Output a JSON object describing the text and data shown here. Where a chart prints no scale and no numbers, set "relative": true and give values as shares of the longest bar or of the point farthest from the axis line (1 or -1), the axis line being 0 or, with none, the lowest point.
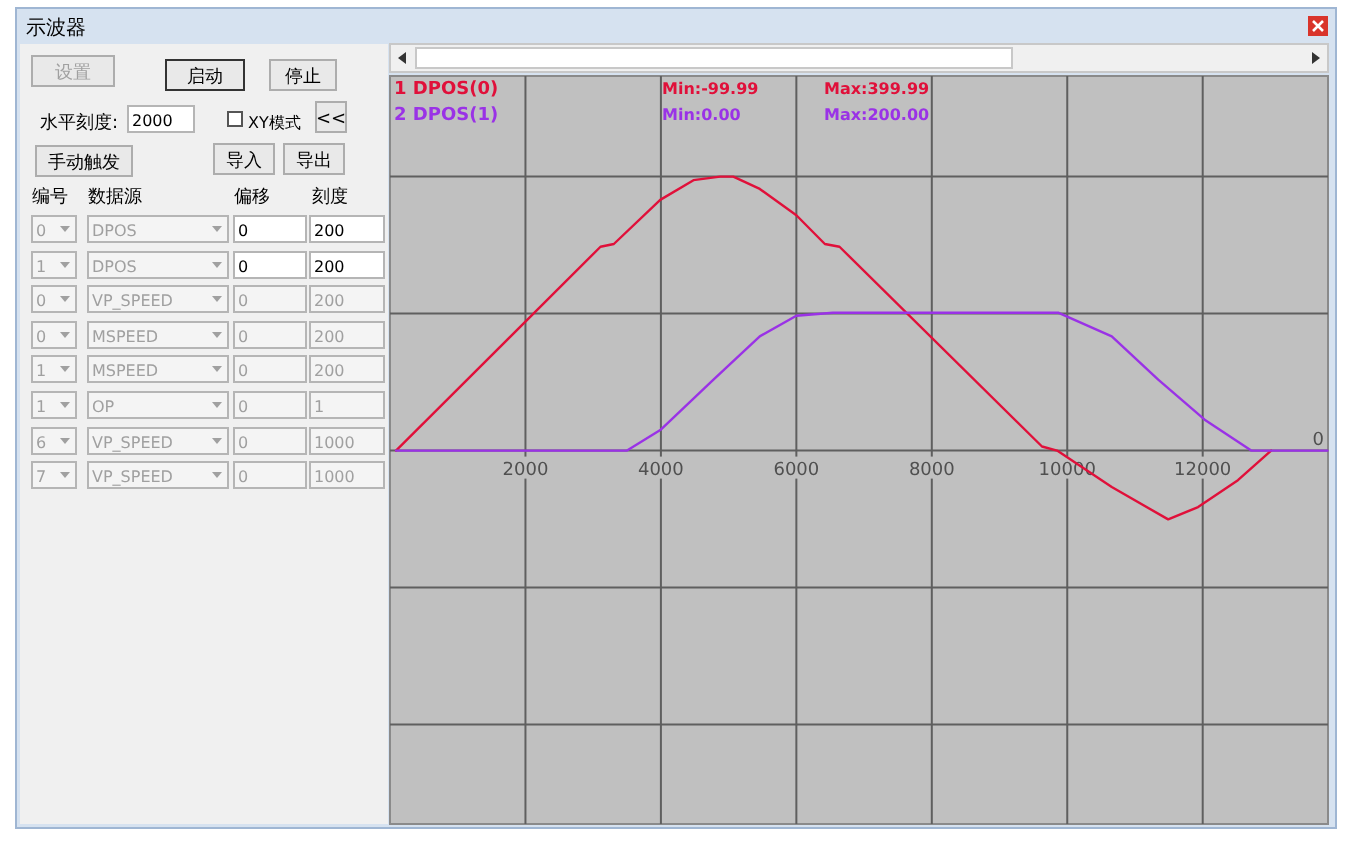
{
  "chart_data": [
    {
      "type": "other",
      "title": "示波器",
      "annotations": [
        "设置",
        "启动",
        "停止",
        "水平刻度:",
        "2000",
        "XY模式",
        "<<",
        "手动触发",
        "导入",
        "导出",
        "编号",
        "数据源",
        "偏移",
        "刻度",
        "0",
        "DPOS",
        "0",
        "200",
        "1",
        "DPOS",
        "0",
        "200",
        "0",
        "VP_SPEED",
        "0",
        "200",
        "0",
        "MSPEED",
        "0",
        "200",
        "1",
        "MSPEED",
        "0",
        "200",
        "1",
        "OP",
        "0",
        "1",
        "6",
        "VP_SPEED",
        "0",
        "1000",
        "7",
        "VP_SPEED",
        "0",
        "1000"
      ]
    },
    {
      "type": "line",
      "relative": true,
      "xlim": [
        0,
        13850
      ],
      "xticks": [
        2000,
        4000,
        6000,
        8000,
        10000,
        12000
      ],
      "grid": true,
      "legend": "top left",
      "annotations": [
        "Min:-99.99",
        "Max:399.99",
        "Min:0.00",
        "Max:200.00",
        "0"
      ],
      "series": [
        {
          "name": "1 DPOS(0)",
          "color": "#e0103a",
          "x": [
            89,
            3108,
            3305,
            3990,
            4481,
            4873,
            5069,
            5460,
            6000,
            6421,
            6637,
            9627,
            9850,
            10657,
            11490,
            11932,
            12520,
            13010
          ],
          "values": [
            0,
            0.744,
            0.754,
            0.915,
            0.987,
            1,
            1,
            0.955,
            0.859,
            0.754,
            0.744,
            0.015,
            0,
            -0.133,
            -0.251,
            -0.206,
            -0.108,
            0
          ]
        },
        {
          "name": "2 DPOS(1)",
          "color": "#9a32e6",
          "x": [
            89,
            3500,
            3991,
            4776,
            5460,
            6000,
            6540,
            9873,
            10657,
            11343,
            12029,
            12716,
            13843
          ],
          "values": [
            0,
            0,
            0.075,
            0.259,
            0.417,
            0.492,
            0.503,
            0.503,
            0.417,
            0.259,
            0.113,
            0,
            0
          ]
        }
      ]
    }
  ]
}
